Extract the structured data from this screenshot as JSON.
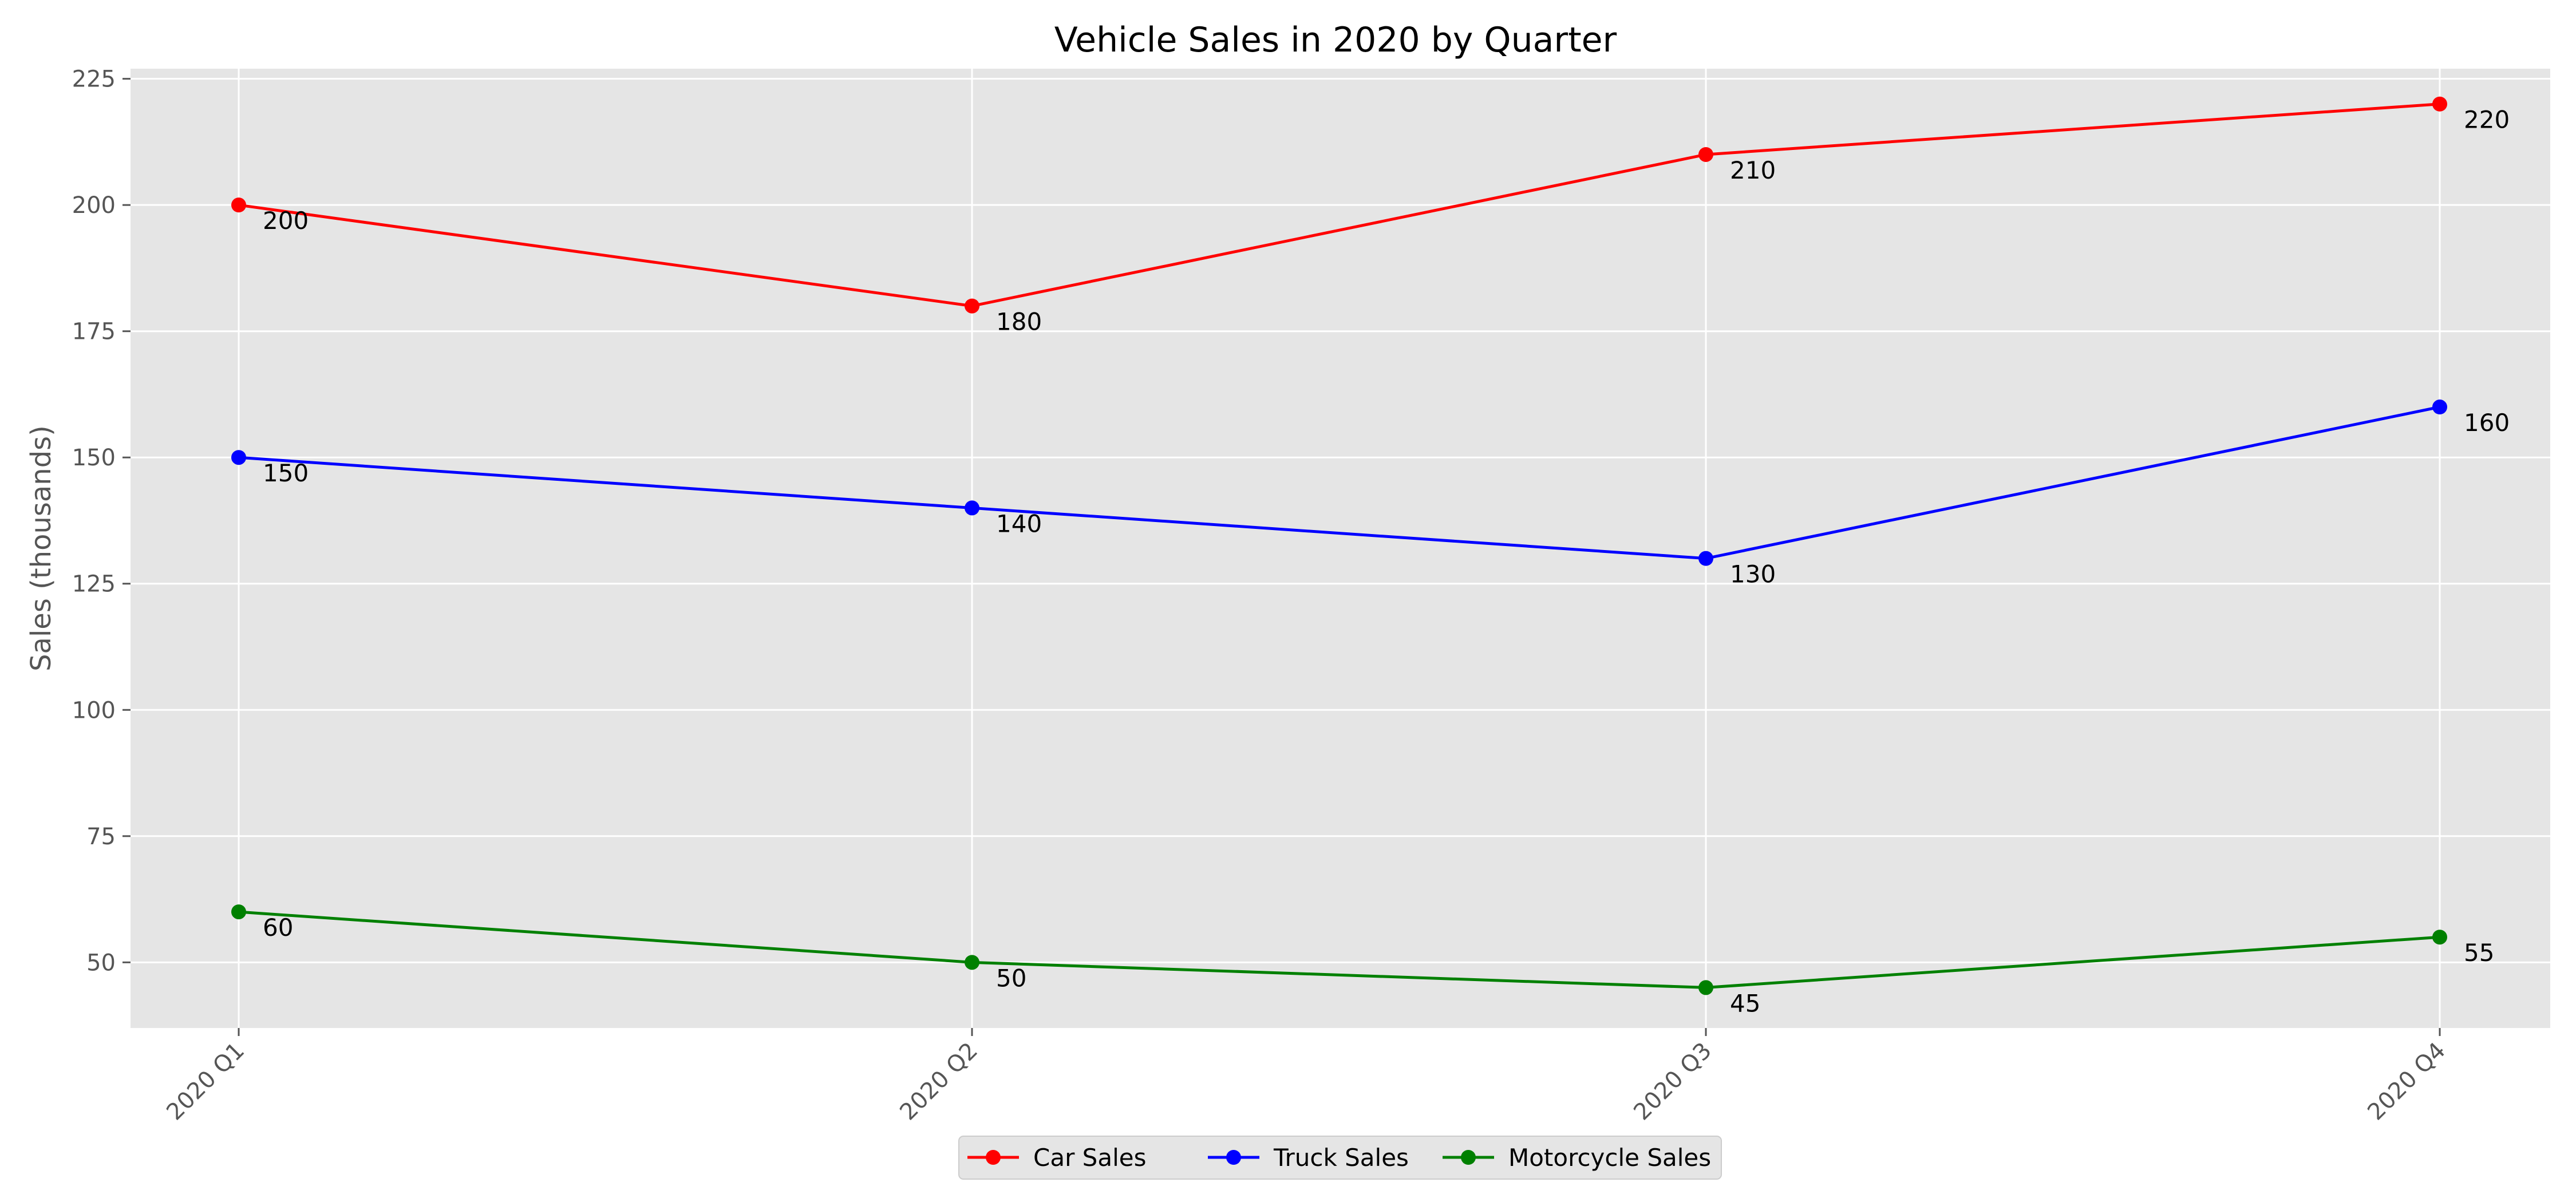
{
  "chart_data": {
    "type": "line",
    "title": "Vehicle Sales in 2020 by Quarter",
    "xlabel": "",
    "ylabel": "Sales (thousands)",
    "categories": [
      "2020 Q1",
      "2020 Q2",
      "2020 Q3",
      "2020 Q4"
    ],
    "ylim": [
      37,
      227
    ],
    "yticks": [
      50,
      75,
      100,
      125,
      150,
      175,
      200,
      225
    ],
    "grid": true,
    "legend_position": "bottom-center",
    "series": [
      {
        "name": "Car Sales",
        "color": "#ff0000",
        "values": [
          200,
          180,
          210,
          220
        ]
      },
      {
        "name": "Truck Sales",
        "color": "#0000ff",
        "values": [
          150,
          140,
          130,
          160
        ]
      },
      {
        "name": "Motorcycle Sales",
        "color": "#008000",
        "values": [
          60,
          50,
          45,
          55
        ]
      }
    ]
  }
}
